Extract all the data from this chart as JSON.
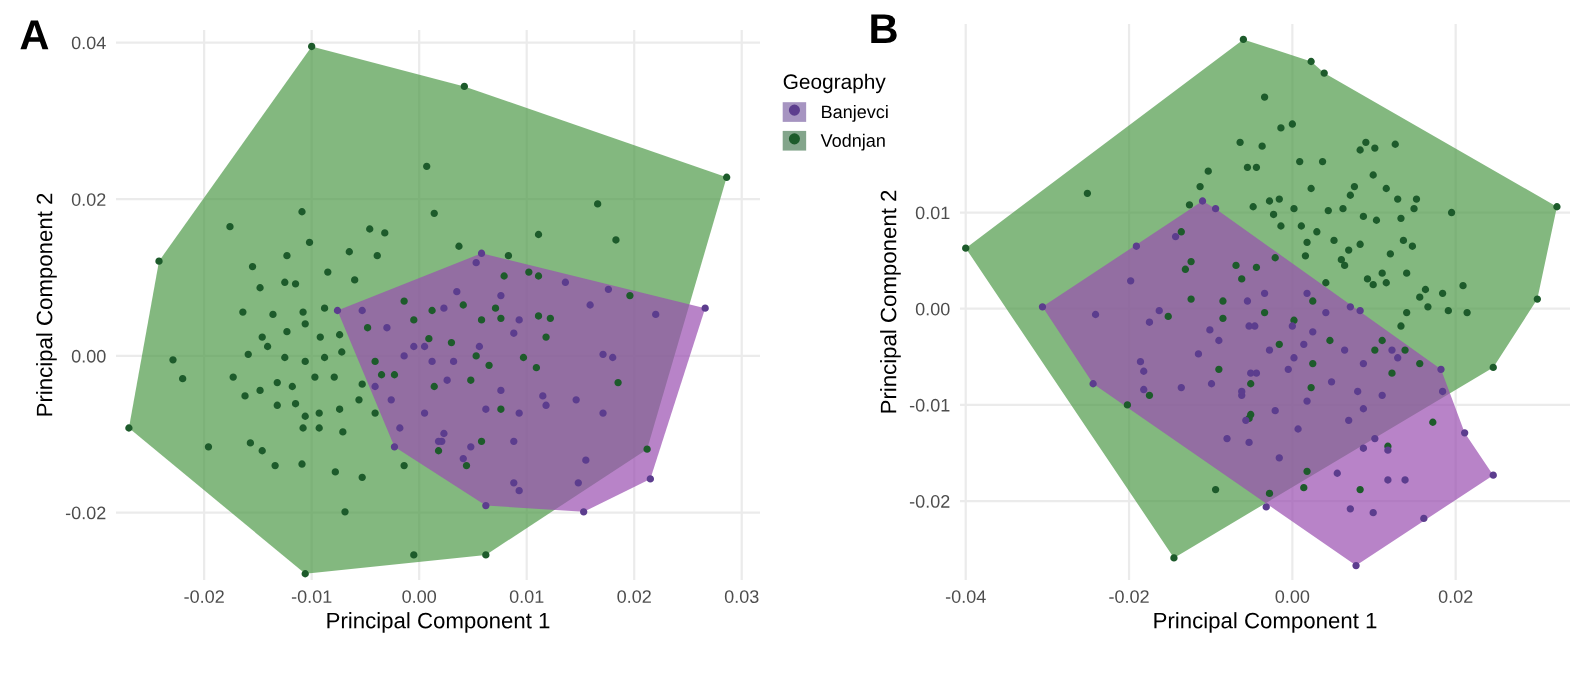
{
  "chart_data": [
    {
      "type": "scatter",
      "title": "A",
      "xlabel": "Principal Component 1",
      "ylabel": "Principal Component 2",
      "legend_title": "Geography",
      "legend": "right",
      "grid": true,
      "xlim": [
        -0.0282,
        0.0317
      ],
      "ylim": [
        -0.0286,
        0.0416
      ],
      "xticks": [
        -0.02,
        -0.01,
        {
          "value": 0.0,
          "label": "0.00"
        },
        0.01,
        0.02,
        0.03
      ],
      "yticks": [
        -0.02,
        {
          "value": 0.0,
          "label": "0.00"
        },
        0.02,
        0.04
      ],
      "series": [
        {
          "type": "area",
          "color": "#4e9a48",
          "x": [
            -0.027,
            -0.0242,
            -0.01,
            0.0042,
            0.0286,
            0.0212,
            0.0062,
            -0.0106
          ],
          "values": [
            -0.0092,
            0.0121,
            0.0395,
            0.0344,
            0.0228,
            -0.0119,
            -0.0254,
            -0.0278
          ]
        },
        {
          "type": "area",
          "color": "#9a4fb0",
          "x": [
            -0.0076,
            0.0058,
            0.0266,
            0.0215,
            0.0153,
            0.0062,
            -0.0023
          ],
          "values": [
            0.0058,
            0.0131,
            0.0061,
            -0.0157,
            -0.0199,
            -0.0191,
            -0.0116
          ]
        },
        {
          "name": "Banjevci",
          "marker": "circle",
          "color": "#5c3d8e",
          "x": [
            0.0058,
            0.0266,
            0.0215,
            0.0153,
            0.0062,
            -0.0076,
            -0.0023,
            0.0053,
            0.0076,
            0.0093,
            0.0136,
            0.0159,
            0.0176,
            0.022,
            0.0171,
            0.018,
            0.0146,
            0.0171,
            0.0115,
            0.0118,
            0.0093,
            0.0076,
            0.0062,
            0.0088,
            0.0048,
            0.0021,
            0.0041,
            0.0155,
            0.0148,
            0.0088,
            0.0093,
            0.0035,
            0.0023,
            0.0088,
            0.0056,
            0.0032,
            0.0014,
            0.0005,
            0.0004,
            -0.0053,
            -0.003,
            -0.0014,
            -0.0005,
            0.0012,
            -0.0026,
            -0.0041,
            0.0005,
            0.0023,
            0.0018,
            -0.0018,
            0.0026
          ],
          "values": [
            0.0131,
            0.0061,
            -0.0157,
            -0.0199,
            -0.0191,
            0.0058,
            -0.0116,
            0.0119,
            0.0077,
            0.0046,
            0.0094,
            0.0065,
            0.0085,
            0.0053,
            0.0002,
            -0.0002,
            -0.0056,
            -0.0073,
            -0.0051,
            -0.0063,
            -0.0073,
            -0.0044,
            -0.0068,
            -0.0109,
            -0.0116,
            -0.0109,
            -0.0131,
            -0.0133,
            -0.0162,
            -0.0162,
            -0.0172,
            0.0082,
            0.0061,
            0.0029,
            0.0012,
            -0.0007,
            null,
            0.0012,
            null,
            0.0058,
            0.0036,
            0.0,
            0.0012,
            -0.0007,
            -0.0056,
            -0.0039,
            -0.0073,
            -0.0099,
            -0.0109,
            -0.0092,
            -0.0031
          ]
        },
        {
          "name": "Vodnjan",
          "marker": "circle",
          "color": "#1d5b2b",
          "x": [
            -0.027,
            -0.0242,
            -0.01,
            0.0042,
            0.0286,
            0.0212,
            0.0062,
            -0.0106,
            -0.0176,
            -0.0109,
            0.0007,
            0.0014,
            -0.0229,
            -0.022,
            -0.0196,
            -0.0069,
            -0.0005,
            -0.0109,
            -0.0078,
            -0.0053,
            -0.0134,
            -0.0157,
            -0.0173,
            -0.0155,
            -0.0046,
            -0.0032,
            -0.0065,
            -0.0039,
            -0.0085,
            -0.0123,
            -0.0102,
            -0.0148,
            -0.0125,
            -0.0115,
            -0.006,
            -0.0164,
            -0.0136,
            -0.0108,
            -0.0088,
            -0.0146,
            -0.0123,
            -0.0106,
            -0.0092,
            -0.0074,
            -0.0159,
            -0.0141,
            -0.0125,
            -0.0106,
            -0.0088,
            -0.0072,
            -0.0132,
            -0.0118,
            -0.0097,
            -0.0079,
            -0.0162,
            -0.0148,
            -0.0132,
            -0.0115,
            -0.0106,
            -0.0093,
            -0.0074,
            -0.0056,
            -0.0041,
            -0.0071,
            -0.0093,
            -0.0108,
            -0.0146,
            -0.0048,
            -0.0041,
            -0.0035,
            -0.0053,
            -0.0014,
            -0.0005,
            -0.0023,
            -0.0014,
            0.0037,
            0.0083,
            0.0111,
            0.0166,
            0.0183,
            0.0102,
            0.0111,
            0.0196,
            0.0185,
            0.0111,
            0.0122,
            0.0118,
            0.0071,
            0.0076,
            0.0058,
            0.0041,
            0.003,
            0.0053,
            0.0097,
            0.0109,
            0.0065,
            0.0076,
            0.0048,
            0.0014,
            0.0058,
            0.0044,
            0.0018,
            0.0009,
            0.0012,
            0.0079
          ],
          "values": [
            -0.0092,
            0.0121,
            0.0395,
            0.0344,
            0.0228,
            -0.0119,
            -0.0254,
            -0.0278,
            0.0165,
            0.0184,
            0.0242,
            0.0182,
            -0.0005,
            -0.0029,
            -0.0116,
            -0.0199,
            -0.0254,
            -0.0138,
            -0.0148,
            -0.0155,
            -0.014,
            -0.0111,
            -0.0027,
            0.0114,
            0.0162,
            0.0157,
            0.0133,
            0.0128,
            0.0107,
            0.0128,
            0.0145,
            0.0087,
            0.0094,
            0.0092,
            0.0097,
            0.0056,
            0.0053,
            0.0056,
            0.0061,
            0.0024,
            0.0031,
            0.0041,
            0.0024,
            0.0027,
            0.0002,
            0.0012,
            -0.0002,
            -0.0007,
            -0.0002,
            0.0005,
            -0.0034,
            -0.0039,
            -0.0027,
            -0.0027,
            -0.0051,
            -0.0044,
            -0.0063,
            -0.0061,
            -0.0077,
            -0.0073,
            -0.0068,
            -0.0056,
            -0.0073,
            -0.0097,
            -0.0092,
            -0.0092,
            -0.0121,
            0.0036,
            -0.0007,
            -0.0024,
            -0.0036,
            0.007,
            0.0046,
            -0.0024,
            -0.014,
            0.014,
            0.0128,
            0.0155,
            0.0194,
            0.0148,
            0.0107,
            0.0102,
            0.0077,
            -0.0034,
            0.0051,
            0.0048,
            0.0024,
            0.0061,
            0.0048,
            0.0046,
            0.0065,
            0.0017,
            0.0,
            -0.0002,
            -0.0015,
            -0.0012,
            -0.0068,
            -0.0031,
            -0.0039,
            -0.0109,
            -0.014,
            -0.0121,
            0.0022,
            0.0058,
            0.0102
          ]
        }
      ]
    },
    {
      "type": "scatter",
      "title": "B",
      "xlabel": "Principal Component 1",
      "ylabel": "Principal Component 2",
      "grid": true,
      "xlim": [
        -0.0407,
        0.034
      ],
      "ylim": [
        -0.0282,
        0.0296
      ],
      "xticks": [
        -0.04,
        -0.02,
        {
          "value": 0.0,
          "label": "0.00"
        },
        0.02
      ],
      "yticks": [
        -0.02,
        -0.01,
        {
          "value": 0.0,
          "label": "0.00"
        },
        0.01
      ],
      "series": [
        {
          "type": "area",
          "color": "#4e9a48",
          "x": [
            -0.04,
            -0.006,
            0.0023,
            0.0039,
            0.0324,
            0.03,
            0.0246,
            -0.0145
          ],
          "values": [
            0.0063,
            0.028,
            0.0257,
            0.0245,
            0.0106,
            0.001,
            -0.0061,
            -0.0259
          ]
        },
        {
          "type": "area",
          "color": "#9a4fb0",
          "x": [
            -0.0306,
            -0.011,
            -0.0094,
            0.0182,
            0.0211,
            0.0246,
            0.0078,
            -0.0244
          ],
          "values": [
            0.0002,
            0.0112,
            0.0104,
            -0.0063,
            -0.0129,
            -0.0173,
            -0.0267,
            -0.0078
          ]
        },
        {
          "marker": "circle",
          "color": "#5c3d8e",
          "x": [
            -0.0306,
            -0.011,
            -0.0244,
            0.0078,
            0.0246,
            0.0211,
            0.0182,
            -0.0094,
            -0.0143,
            -0.0191,
            -0.0198,
            -0.0241,
            -0.0175,
            -0.0163,
            -0.0101,
            -0.009,
            -0.0115,
            -0.0186,
            -0.0182,
            -0.0136,
            -0.0099,
            -0.0182,
            -0.0062,
            -0.0055,
            -0.0053,
            -0.0028,
            -0.0044,
            -0.0057,
            -0.008,
            -0.0053,
            -0.0016,
            -0.0032,
            -0.0034,
            -0.0046,
            0.0,
            0.0002,
            0.0014,
            -0.0005,
            -0.0051,
            -0.0062,
            -0.0021,
            0.0007,
            0.0018,
            0.0064,
            0.0087,
            0.0122,
            0.0129,
            0.0083,
            0.0071,
            0.0025,
            0.0048,
            0.008,
            0.011,
            0.0069,
            0.0087,
            0.0101,
            0.0117,
            0.0087,
            0.0055,
            0.0117,
            0.0138,
            0.0071,
            0.0099,
            0.0184,
            0.0161,
            0.0041,
            0.0018
          ],
          "values": [
            0.0002,
            0.0112,
            -0.0078,
            -0.0267,
            -0.0173,
            -0.0129,
            -0.0063,
            0.0104,
            0.0075,
            0.0065,
            0.0029,
            -0.0006,
            -0.0014,
            -0.0002,
            -0.0022,
            -0.0033,
            -0.0047,
            -0.0055,
            -0.0065,
            -0.0082,
            -0.0078,
            -0.0084,
            -0.009,
            0.0008,
            -0.0018,
            -0.0043,
            -0.0067,
            -0.0116,
            -0.0135,
            -0.0139,
            -0.0155,
            -0.0206,
            0.0016,
            -0.0018,
            -0.0018,
            -0.0051,
            -0.0037,
            -0.0063,
            -0.0067,
            -0.0086,
            -0.0106,
            -0.0125,
            -0.0096,
            -0.0043,
            -0.0057,
            -0.0043,
            -0.0051,
            -0.0002,
            0.0002,
            -0.0024,
            -0.0076,
            -0.0086,
            -0.009,
            -0.0116,
            -0.0104,
            -0.0135,
            -0.0147,
            -0.0145,
            -0.0171,
            -0.0178,
            -0.0178,
            -0.0208,
            -0.0212,
            -0.0086,
            -0.0218,
            -0.0004,
            0.0016
          ]
        },
        {
          "marker": "circle",
          "color": "#1d5b2b",
          "x": [
            -0.04,
            -0.006,
            0.0023,
            0.0039,
            0.0324,
            0.03,
            0.0246,
            -0.0145,
            -0.0034,
            -0.0014,
            -0.0064,
            -0.0037,
            -0.0055,
            -0.0044,
            -0.0103,
            -0.0113,
            -0.0251,
            -0.0126,
            -0.0048,
            -0.0028,
            -0.0023,
            -0.0014,
            -0.0136,
            -0.0124,
            -0.0131,
            -0.0069,
            -0.0044,
            -0.0021,
            -0.0124,
            -0.0085,
            -0.0062,
            -0.0152,
            -0.0085,
            -0.0034,
            -0.0016,
            -0.009,
            -0.0051,
            -0.0175,
            -0.0202,
            -0.0053,
            -0.0094,
            -0.0028,
            0.0,
            0.0009,
            0.0037,
            0.009,
            0.0083,
            0.0101,
            0.0126,
            0.0023,
            0.0076,
            0.0099,
            0.0115,
            0.0071,
            0.0129,
            0.0152,
            0.0149,
            0.0195,
            -0.0016,
            0.0002,
            0.0044,
            0.0062,
            0.0087,
            0.0103,
            0.0133,
            0.0011,
            0.003,
            0.0051,
            0.0083,
            0.0069,
            0.0136,
            0.0147,
            0.012,
            0.0018,
            0.0016,
            0.006,
            0.0064,
            0.011,
            0.014,
            0.0092,
            0.0115,
            0.0099,
            0.0163,
            0.0209,
            0.0156,
            0.0184,
            0.0166,
            0.0191,
            0.0214,
            0.014,
            0.0133,
            0.0041,
            0.0025,
            0.0002,
            0.0046,
            0.011,
            0.0138,
            0.0101,
            0.0025,
            0.0122,
            0.0156,
            0.0172,
            0.0117,
            0.0018,
            0.0083,
            0.0014,
            -0.0051,
            0.0023
          ],
          "values": [
            0.0063,
            0.028,
            0.0257,
            0.0245,
            0.0106,
            0.001,
            -0.0061,
            -0.0259,
            0.022,
            0.0188,
            0.0173,
            0.0169,
            0.0147,
            0.0147,
            0.0143,
            0.0127,
            0.012,
            0.0108,
            0.0106,
            0.0112,
            0.0098,
            0.0086,
            0.008,
            0.0049,
            0.0041,
            0.0045,
            0.0043,
            0.0053,
            0.001,
            0.0008,
            0.0031,
            -0.0008,
            -0.001,
            -0.0004,
            -0.0037,
            -0.0063,
            -0.0078,
            -0.009,
            -0.01,
            -0.0114,
            -0.0188,
            -0.0192,
            0.0192,
            0.0153,
            0.0153,
            0.0173,
            0.0165,
            0.0167,
            0.0171,
            0.0125,
            0.0127,
            0.0139,
            0.0125,
            0.0118,
            0.0114,
            0.0114,
            0.0104,
            0.01,
            0.0114,
            0.0104,
            0.0102,
            0.0104,
            0.0096,
            0.0092,
            0.0094,
            0.0086,
            0.008,
            0.0071,
            0.0067,
            0.0061,
            0.0071,
            0.0065,
            0.0057,
            0.0069,
            0.0055,
            0.0051,
            0.0045,
            0.0037,
            0.0037,
            0.0031,
            0.0027,
            0.0025,
            0.002,
            0.0024,
            0.0012,
            0.0016,
            0.0002,
            -0.0002,
            -0.0004,
            -0.0004,
            -0.0018,
            0.0027,
            0.0008,
            -0.0012,
            -0.0033,
            -0.0033,
            -0.0043,
            -0.0043,
            -0.0057,
            -0.0067,
            -0.0057,
            -0.0118,
            -0.0143,
            -0.0169,
            -0.0188,
            -0.0186,
            -0.011,
            -0.0082
          ]
        }
      ]
    }
  ]
}
